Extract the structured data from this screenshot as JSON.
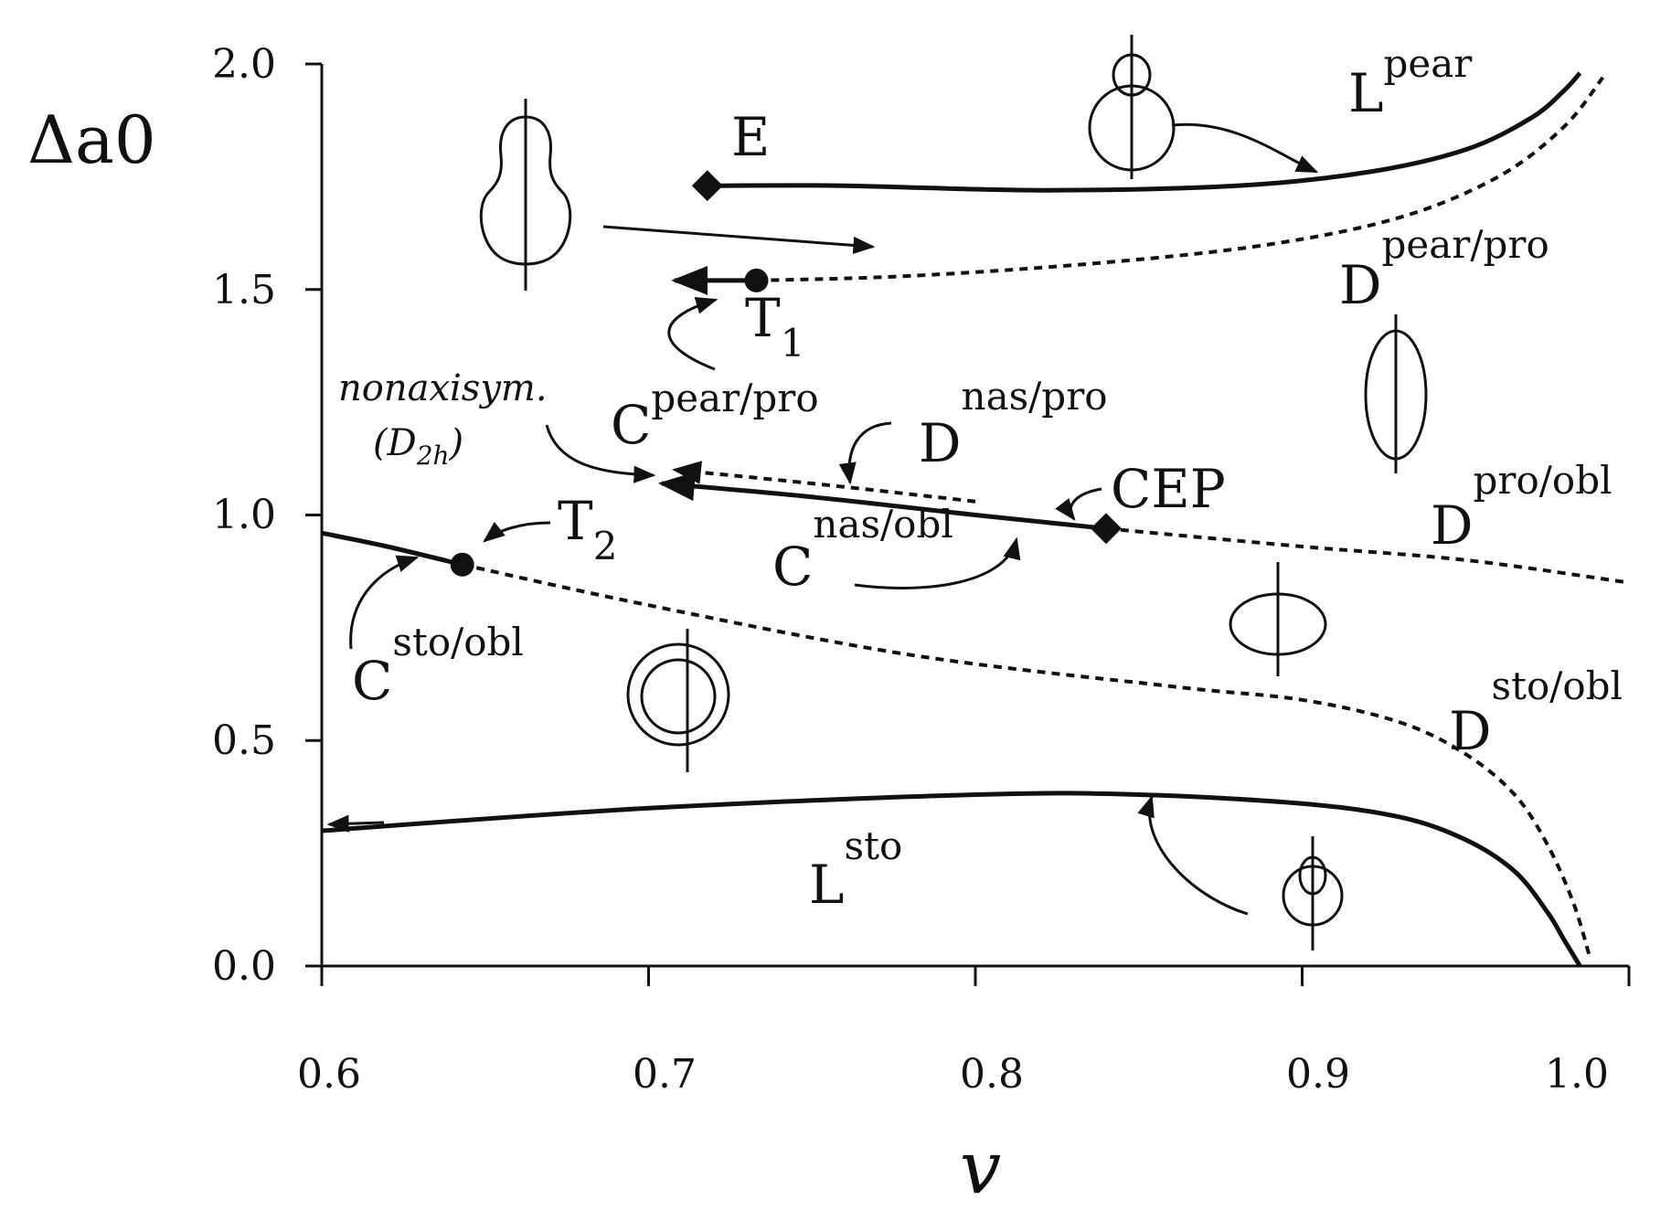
{
  "chart_data": {
    "type": "line",
    "title": "",
    "xlabel": "v",
    "ylabel": "Δa0",
    "xlim": [
      0.6,
      1.0
    ],
    "ylim": [
      0.0,
      2.0
    ],
    "x_ticks": [
      "0.6",
      "0.7",
      "0.8",
      "0.9",
      "1.0"
    ],
    "y_ticks": [
      "0.0",
      "0.5",
      "1.0",
      "1.5",
      "2.0"
    ],
    "grid": false,
    "series": [
      {
        "id": "L-pear",
        "style": "solid",
        "x": [
          0.718,
          0.76,
          0.82,
          0.88,
          0.92,
          0.95,
          0.97,
          0.98,
          0.985
        ],
        "y": [
          1.73,
          1.73,
          1.72,
          1.73,
          1.76,
          1.81,
          1.88,
          1.94,
          1.98
        ]
      },
      {
        "id": "D-pear-pro",
        "style": "dashed",
        "x": [
          0.733,
          0.78,
          0.84,
          0.89,
          0.93,
          0.96,
          0.98,
          0.992
        ],
        "y": [
          1.52,
          1.53,
          1.56,
          1.6,
          1.66,
          1.75,
          1.86,
          1.97
        ]
      },
      {
        "id": "C-pear-pro",
        "style": "solid",
        "x": [
          0.708,
          0.733
        ],
        "y": [
          1.52,
          1.52
        ]
      },
      {
        "id": "C-nas-obl",
        "style": "solid",
        "x": [
          0.704,
          0.75,
          0.8,
          0.84
        ],
        "y": [
          1.07,
          1.04,
          1.0,
          0.97
        ]
      },
      {
        "id": "D-nas-pro",
        "style": "dashed",
        "x": [
          0.708,
          0.75,
          0.8
        ],
        "y": [
          1.1,
          1.07,
          1.03
        ]
      },
      {
        "id": "D-pro-obl",
        "style": "dashed",
        "x": [
          0.84,
          0.9,
          0.95,
          1.0
        ],
        "y": [
          0.97,
          0.93,
          0.9,
          0.85
        ]
      },
      {
        "id": "C-sto-obl",
        "style": "solid",
        "x": [
          0.6,
          0.62,
          0.643
        ],
        "y": [
          0.96,
          0.93,
          0.89
        ]
      },
      {
        "id": "D-sto-obl",
        "style": "dashed",
        "x": [
          0.643,
          0.7,
          0.78,
          0.86,
          0.9,
          0.93,
          0.95,
          0.965,
          0.975,
          0.983,
          0.988
        ],
        "y": [
          0.89,
          0.8,
          0.69,
          0.62,
          0.59,
          0.54,
          0.47,
          0.38,
          0.27,
          0.14,
          0.02
        ]
      },
      {
        "id": "L-sto",
        "style": "solid",
        "x": [
          0.6,
          0.7,
          0.8,
          0.85,
          0.9,
          0.93,
          0.95,
          0.965,
          0.975,
          0.98,
          0.985
        ],
        "y": [
          0.3,
          0.35,
          0.38,
          0.38,
          0.36,
          0.33,
          0.28,
          0.21,
          0.12,
          0.06,
          0.0
        ]
      }
    ],
    "points": [
      {
        "id": "E",
        "marker": "diamond",
        "x": 0.718,
        "y": 1.73
      },
      {
        "id": "T1",
        "marker": "circle",
        "x": 0.733,
        "y": 1.52
      },
      {
        "id": "CEP",
        "marker": "diamond",
        "x": 0.84,
        "y": 0.97
      },
      {
        "id": "T2",
        "marker": "circle",
        "x": 0.643,
        "y": 0.89
      }
    ],
    "annotations": {
      "E": "E",
      "T1": {
        "main": "T",
        "sub": "1"
      },
      "T2": {
        "main": "T",
        "sub": "2"
      },
      "CEP": "CEP",
      "L_pear": {
        "main": "L",
        "sup": "pear"
      },
      "D_pear_pro": {
        "main": "D",
        "sup": "pear/pro"
      },
      "C_pear_pro": {
        "main": "C",
        "sup": "pear/pro"
      },
      "D_nas_pro": {
        "main": "D",
        "sup": "nas/pro"
      },
      "C_nas_obl": {
        "main": "C",
        "sup": "nas/obl"
      },
      "D_pro_obl": {
        "main": "D",
        "sup": "pro/obl"
      },
      "C_sto_obl": {
        "main": "C",
        "sup": "sto/obl"
      },
      "D_sto_obl": {
        "main": "D",
        "sup": "sto/obl"
      },
      "L_sto": {
        "main": "L",
        "sup": "sto"
      },
      "nonaxisym": "nonaxisym.",
      "D2h": {
        "main": "(D",
        "sub": "2h",
        "close": ")"
      }
    }
  }
}
